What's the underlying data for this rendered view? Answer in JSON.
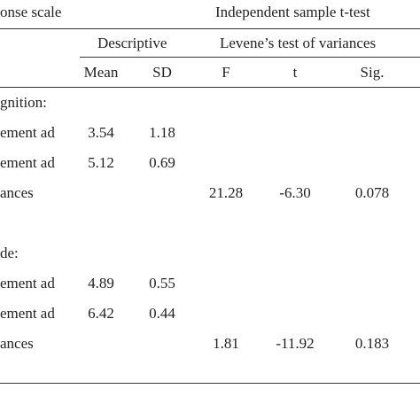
{
  "header": {
    "response_scale": "onse scale",
    "t_test": "Independent sample t-test",
    "descriptive": "Descriptive",
    "levene": "Levene’s test of variances",
    "columns": [
      "Mean",
      "SD",
      "F",
      "t",
      "Sig."
    ]
  },
  "rows": [
    [
      "gnition:"
    ],
    [
      "ement ad",
      "3.54",
      "1.18"
    ],
    [
      "ement ad",
      "5.12",
      "0.69"
    ],
    [
      "ances",
      null,
      null,
      "21.28",
      "-6.30",
      "0.078"
    ],
    [
      "de:"
    ],
    [
      "ement ad",
      "4.89",
      "0.55"
    ],
    [
      "ement ad",
      "6.42",
      "0.44"
    ],
    [
      "ances",
      null,
      null,
      "1.81",
      "-11.92",
      "0.183"
    ]
  ]
}
